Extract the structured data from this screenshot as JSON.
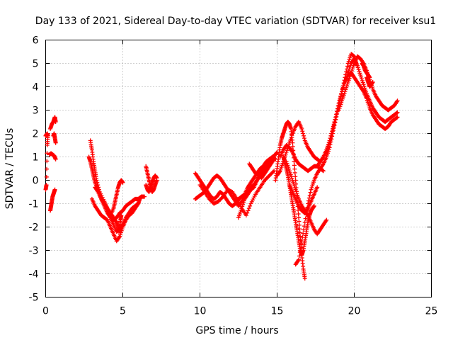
{
  "chart_data": {
    "type": "scatter",
    "title": "Day 133 of 2021, Sidereal Day-to-day VTEC variation (SDTVAR) for receiver ksu1",
    "xlabel": "GPS time / hours",
    "ylabel": "SDTVAR / TECUs",
    "xlim": [
      0,
      25
    ],
    "ylim": [
      -5,
      6
    ],
    "xticks": [
      "0",
      "5",
      "10",
      "15",
      "20",
      "25"
    ],
    "yticks": [
      "-5",
      "-4",
      "-3",
      "-2",
      "-1",
      "0",
      "1",
      "2",
      "3",
      "4",
      "5",
      "6"
    ],
    "grid": true,
    "marker": "+",
    "color": "#ff0000",
    "series": [
      {
        "x": [
          0.0,
          0.05,
          0.1,
          0.15,
          0.1,
          0.05,
          0.0
        ],
        "y": [
          1.9,
          1.95,
          2.0,
          1.9,
          1.5,
          -0.2,
          -0.4
        ]
      },
      {
        "x": [
          0.3,
          0.35,
          0.4,
          0.45,
          0.5,
          0.55,
          0.6
        ],
        "y": [
          -1.3,
          -1.1,
          -0.9,
          -0.7,
          -0.6,
          -0.5,
          -0.4
        ]
      },
      {
        "x": [
          0.3,
          0.4,
          0.5,
          0.55,
          0.6,
          0.65
        ],
        "y": [
          2.2,
          2.4,
          2.5,
          2.6,
          2.7,
          2.5
        ]
      },
      {
        "x": [
          0.25,
          0.35,
          0.45,
          0.55,
          0.65
        ],
        "y": [
          1.1,
          1.15,
          1.1,
          1.05,
          0.9
        ]
      },
      {
        "x": [
          0.5,
          0.55,
          0.6,
          0.65
        ],
        "y": [
          1.9,
          2.0,
          1.8,
          1.6
        ]
      },
      {
        "x": [
          2.9,
          3.0,
          3.1,
          3.2,
          3.3,
          3.5,
          3.8,
          4.0,
          4.2,
          4.4,
          4.6,
          4.7,
          4.75,
          4.8,
          4.85,
          4.9
        ],
        "y": [
          1.7,
          1.3,
          0.8,
          0.4,
          0.0,
          -0.5,
          -0.9,
          -1.2,
          -1.4,
          -1.6,
          -1.8,
          -2.0,
          -2.2,
          -2.0,
          -1.7,
          -1.5
        ]
      },
      {
        "x": [
          2.8,
          2.9,
          3.0,
          3.1,
          3.2,
          3.4,
          3.6,
          3.8,
          4.0,
          4.2,
          4.4,
          4.6,
          4.8,
          5.0,
          5.2,
          5.4,
          5.6,
          5.8,
          6.0,
          6.1
        ],
        "y": [
          1.0,
          0.8,
          0.5,
          0.2,
          -0.1,
          -0.4,
          -0.8,
          -1.1,
          -1.4,
          -1.6,
          -1.9,
          -2.2,
          -2.1,
          -1.9,
          -1.6,
          -1.4,
          -1.2,
          -1.1,
          -1.0,
          -0.8
        ]
      },
      {
        "x": [
          3.0,
          3.2,
          3.4,
          3.6,
          3.8,
          4.0,
          4.2,
          4.4,
          4.6,
          4.8,
          5.0,
          5.2,
          5.4,
          5.6,
          5.8,
          6.0
        ],
        "y": [
          -0.8,
          -1.1,
          -1.3,
          -1.5,
          -1.6,
          -1.7,
          -2.0,
          -2.3,
          -2.6,
          -2.4,
          -2.0,
          -1.7,
          -1.5,
          -1.4,
          -1.2,
          -1.0
        ]
      },
      {
        "x": [
          3.2,
          3.4,
          3.6,
          3.8,
          4.0,
          4.2,
          4.4,
          4.6,
          4.8,
          5.0,
          5.2,
          5.4,
          5.6,
          5.8,
          6.0,
          6.2,
          6.4
        ],
        "y": [
          -0.3,
          -0.5,
          -0.8,
          -1.0,
          -1.2,
          -1.5,
          -1.7,
          -1.6,
          -1.4,
          -1.3,
          -1.1,
          -1.0,
          -0.9,
          -0.8,
          -0.8,
          -0.7,
          -0.7
        ]
      },
      {
        "x": [
          4.2,
          4.4,
          4.5,
          4.6,
          4.7,
          4.8,
          4.9,
          5.0
        ],
        "y": [
          -1.5,
          -1.2,
          -0.9,
          -0.6,
          -0.3,
          -0.1,
          0.0,
          -0.1
        ]
      },
      {
        "x": [
          6.5,
          6.6,
          6.7,
          6.8,
          6.9,
          7.0,
          7.1,
          7.2
        ],
        "y": [
          0.6,
          0.3,
          0.0,
          -0.3,
          -0.5,
          -0.4,
          -0.2,
          0.0
        ]
      },
      {
        "x": [
          6.5,
          6.6,
          6.7,
          6.8,
          6.9,
          7.0,
          7.1,
          7.2
        ],
        "y": [
          -0.2,
          -0.4,
          -0.5,
          -0.3,
          -0.1,
          0.1,
          0.2,
          0.1
        ]
      },
      {
        "x": [
          9.7,
          9.9,
          10.1,
          10.3,
          10.5,
          10.7,
          10.9,
          11.1,
          11.3,
          11.5,
          11.7,
          11.9,
          12.1,
          12.3,
          12.5,
          12.7,
          12.9,
          13.1,
          13.3,
          13.5,
          13.7,
          13.9,
          14.1,
          14.3,
          14.5,
          14.7,
          14.9,
          15.0
        ],
        "y": [
          0.3,
          0.1,
          -0.1,
          -0.3,
          -0.5,
          -0.7,
          -0.8,
          -0.7,
          -0.5,
          -0.6,
          -0.8,
          -1.0,
          -1.1,
          -1.0,
          -0.8,
          -0.7,
          -0.6,
          -0.5,
          -0.3,
          -0.2,
          0.0,
          0.2,
          0.4,
          0.6,
          0.8,
          1.0,
          1.1,
          1.2
        ]
      },
      {
        "x": [
          9.7,
          9.9,
          10.1,
          10.3,
          10.5,
          10.7,
          10.9,
          11.1,
          11.3,
          11.5,
          11.7,
          11.9,
          12.1,
          12.3,
          12.5,
          12.7,
          12.9,
          13.1,
          13.3,
          13.5,
          13.7,
          13.9,
          14.1,
          14.3,
          14.5,
          14.7,
          14.9
        ],
        "y": [
          -0.8,
          -0.7,
          -0.6,
          -0.5,
          -0.3,
          -0.1,
          0.1,
          0.2,
          0.1,
          -0.1,
          -0.3,
          -0.5,
          -0.7,
          -0.9,
          -1.1,
          -0.9,
          -0.6,
          -0.3,
          -0.1,
          0.1,
          0.3,
          0.5,
          0.6,
          0.8,
          0.9,
          1.0,
          0.9
        ]
      },
      {
        "x": [
          10.0,
          10.3,
          10.6,
          10.9,
          11.2,
          11.5,
          11.8,
          12.1,
          12.4,
          12.7,
          13.0,
          13.3,
          13.6,
          13.9,
          14.2,
          14.5,
          14.8
        ],
        "y": [
          -0.2,
          -0.5,
          -0.8,
          -1.0,
          -0.9,
          -0.7,
          -0.4,
          -0.5,
          -0.8,
          -1.2,
          -1.5,
          -1.0,
          -0.6,
          -0.3,
          0.0,
          0.2,
          0.4
        ]
      },
      {
        "x": [
          12.5,
          12.7,
          12.9,
          13.1,
          13.3,
          13.5,
          13.7,
          13.9,
          14.1,
          14.3
        ],
        "y": [
          -1.6,
          -1.2,
          -0.8,
          -0.6,
          -0.4,
          -0.3,
          0.0,
          0.3,
          0.5,
          0.4
        ]
      },
      {
        "x": [
          13.2,
          13.4,
          13.6,
          13.8,
          14.0,
          14.2,
          14.4,
          14.6,
          14.8
        ],
        "y": [
          0.7,
          0.5,
          0.3,
          0.2,
          0.1,
          0.3,
          0.5,
          0.7,
          0.9
        ]
      },
      {
        "x": [
          14.9,
          15.0,
          15.1,
          15.2,
          15.3,
          15.4,
          15.5,
          15.6,
          15.7,
          15.8,
          15.9,
          16.0,
          16.1,
          16.2,
          16.3,
          16.4,
          16.5,
          16.6,
          16.7,
          16.8
        ],
        "y": [
          0.0,
          0.5,
          1.0,
          1.5,
          1.8,
          2.0,
          2.2,
          2.4,
          2.5,
          2.4,
          2.2,
          1.6,
          0.8,
          0.0,
          -0.8,
          -1.6,
          -2.4,
          -3.2,
          -3.8,
          -4.2
        ]
      },
      {
        "x": [
          15.0,
          15.2,
          15.4,
          15.6,
          15.8,
          16.0,
          16.2,
          16.4,
          16.6,
          16.8,
          17.0,
          17.2,
          17.4,
          17.6,
          17.8
        ],
        "y": [
          0.2,
          0.4,
          0.8,
          1.2,
          1.6,
          2.0,
          2.3,
          2.5,
          2.2,
          1.7,
          1.4,
          1.2,
          1.0,
          0.9,
          0.8
        ]
      },
      {
        "x": [
          15.2,
          15.4,
          15.6,
          15.8,
          16.0,
          16.2,
          16.4,
          16.6,
          16.8,
          17.0,
          17.2,
          17.4,
          17.6,
          17.8,
          18.0
        ],
        "y": [
          1.0,
          1.3,
          1.5,
          1.4,
          1.2,
          0.9,
          0.7,
          0.6,
          0.5,
          0.4,
          0.5,
          0.6,
          0.6,
          0.5,
          0.4
        ]
      },
      {
        "x": [
          15.4,
          15.5,
          15.6,
          15.7,
          15.8,
          15.9,
          16.0,
          16.1,
          16.2,
          16.3,
          16.4,
          16.5,
          16.6,
          16.7,
          16.8,
          16.9,
          17.0,
          17.1,
          17.2,
          17.3,
          17.4
        ],
        "y": [
          1.0,
          0.8,
          0.5,
          0.2,
          -0.2,
          -0.6,
          -1.0,
          -1.4,
          -1.8,
          -2.2,
          -2.6,
          -3.0,
          -3.2,
          -3.0,
          -2.6,
          -2.2,
          -1.8,
          -1.5,
          -1.3,
          -1.2,
          -1.1
        ]
      },
      {
        "x": [
          15.6,
          15.8,
          16.0,
          16.2,
          16.4,
          16.6,
          16.8,
          17.0,
          17.2,
          17.4,
          17.6,
          17.8,
          18.0,
          18.2
        ],
        "y": [
          0.8,
          0.4,
          0.0,
          -0.4,
          -0.8,
          -1.1,
          -1.3,
          -1.5,
          -1.8,
          -2.1,
          -2.3,
          -2.1,
          -1.9,
          -1.7
        ]
      },
      {
        "x": [
          15.8,
          16.0,
          16.2,
          16.4,
          16.6,
          16.8,
          17.0,
          17.2,
          17.4,
          17.6
        ],
        "y": [
          -0.2,
          -0.5,
          -0.8,
          -1.1,
          -1.3,
          -1.4,
          -1.2,
          -0.9,
          -0.6,
          -0.3
        ]
      },
      {
        "x": [
          16.2,
          16.4,
          16.6,
          16.8,
          17.0,
          17.2,
          17.4,
          17.6,
          17.8,
          18.0,
          18.2,
          18.4,
          18.6,
          18.8,
          19.0,
          19.2,
          19.4,
          19.6,
          19.8,
          20.0,
          20.2
        ],
        "y": [
          -3.6,
          -3.4,
          -2.6,
          -1.8,
          -1.0,
          -0.4,
          0.0,
          0.3,
          0.5,
          0.7,
          1.0,
          1.4,
          2.0,
          2.6,
          3.2,
          3.8,
          4.4,
          5.0,
          5.4,
          5.3,
          4.9
        ]
      },
      {
        "x": [
          17.6,
          17.8,
          18.0,
          18.2,
          18.4,
          18.6,
          18.8,
          19.0,
          19.2,
          19.4,
          19.6,
          19.8,
          20.0,
          20.2,
          20.4,
          20.6,
          20.8,
          21.0,
          21.2,
          21.4,
          21.6,
          21.8,
          22.0,
          22.2,
          22.4,
          22.6,
          22.8
        ],
        "y": [
          0.6,
          0.8,
          1.0,
          1.3,
          1.7,
          2.2,
          2.7,
          3.3,
          3.8,
          4.2,
          4.5,
          4.6,
          4.4,
          4.2,
          4.0,
          3.8,
          3.5,
          3.1,
          2.8,
          2.6,
          2.4,
          2.3,
          2.2,
          2.3,
          2.5,
          2.6,
          2.7
        ]
      },
      {
        "x": [
          18.2,
          18.4,
          18.6,
          18.8,
          19.0,
          19.2,
          19.4,
          19.6,
          19.8,
          20.0,
          20.2,
          20.4,
          20.6,
          20.8,
          21.0,
          21.2,
          21.4,
          21.6,
          21.8,
          22.0,
          22.2,
          22.4,
          22.6,
          22.8
        ],
        "y": [
          1.2,
          1.6,
          2.1,
          2.7,
          3.3,
          3.8,
          4.2,
          4.6,
          5.0,
          5.2,
          4.9,
          4.5,
          4.1,
          3.7,
          3.4,
          3.1,
          2.9,
          2.7,
          2.6,
          2.5,
          2.6,
          2.7,
          2.8,
          2.9
        ]
      },
      {
        "x": [
          19.0,
          19.2,
          19.4,
          19.6,
          19.8,
          20.0,
          20.2,
          20.4,
          20.6,
          20.8,
          21.0,
          21.2,
          21.4,
          21.6,
          21.8,
          22.0,
          22.2,
          22.4,
          22.6,
          22.8
        ],
        "y": [
          3.0,
          3.4,
          3.8,
          4.2,
          4.6,
          5.0,
          5.3,
          5.2,
          5.0,
          4.7,
          4.3,
          3.9,
          3.6,
          3.4,
          3.2,
          3.1,
          3.0,
          3.1,
          3.2,
          3.4
        ]
      },
      {
        "x": [
          20.5,
          20.6,
          20.7,
          20.8,
          20.9,
          21.0
        ],
        "y": [
          5.0,
          4.9,
          4.7,
          4.6,
          4.5,
          4.4
        ]
      },
      {
        "x": [
          20.8,
          20.9,
          21.0,
          21.1,
          21.2
        ],
        "y": [
          4.4,
          4.2,
          4.0,
          4.1,
          4.2
        ]
      }
    ]
  }
}
